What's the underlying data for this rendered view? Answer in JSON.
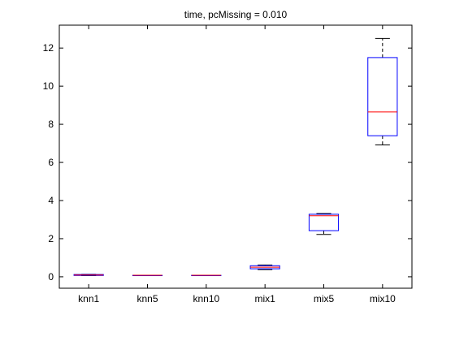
{
  "chart_data": {
    "type": "box",
    "title": "time, pcMissing = 0.010",
    "xlabel": "",
    "ylabel": "",
    "categories": [
      "knn1",
      "knn5",
      "knn10",
      "mix1",
      "mix5",
      "mix10"
    ],
    "yticks": [
      0,
      2,
      4,
      6,
      8,
      10,
      12
    ],
    "ylim": [
      -0.6,
      13.2
    ],
    "grid": false,
    "boxes": [
      {
        "min": 0.06,
        "q1": 0.07,
        "median": 0.09,
        "q3": 0.12,
        "max": 0.13
      },
      {
        "min": 0.07,
        "q1": 0.07,
        "median": 0.08,
        "q3": 0.08,
        "max": 0.08
      },
      {
        "min": 0.07,
        "q1": 0.07,
        "median": 0.08,
        "q3": 0.08,
        "max": 0.08
      },
      {
        "min": 0.38,
        "q1": 0.42,
        "median": 0.5,
        "q3": 0.58,
        "max": 0.62
      },
      {
        "min": 2.22,
        "q1": 2.42,
        "median": 3.2,
        "q3": 3.28,
        "max": 3.32
      },
      {
        "min": 6.92,
        "q1": 7.4,
        "median": 8.65,
        "q3": 11.5,
        "max": 12.5
      }
    ],
    "colors": {
      "box": "#0000ff",
      "median": "#ff0000",
      "whisker": "#000000",
      "axes": "#000000"
    }
  }
}
